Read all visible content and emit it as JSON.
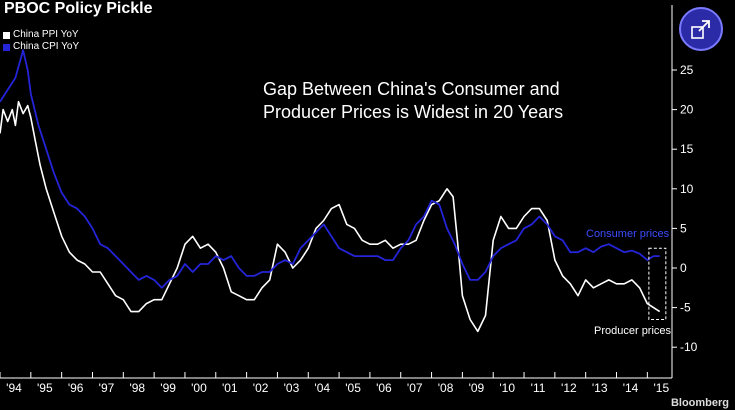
{
  "header": {
    "title": "PBOC Policy Pickle"
  },
  "annotation": {
    "line1": "Gap Between China's Consumer and",
    "line2": "Producer Prices is Widest in 20 Years"
  },
  "labels": {
    "consumer": "Consumer prices",
    "producer": "Producer prices"
  },
  "brand": "Bloomberg",
  "chart_data": {
    "type": "line",
    "title": "Gap Between China's Consumer and Producer Prices is Widest in 20 Years",
    "x_tick_labels": [
      "'94",
      "'95",
      "'96",
      "'97",
      "'98",
      "'99",
      "'00",
      "'01",
      "'02",
      "'03",
      "'04",
      "'05",
      "'06",
      "'07",
      "'08",
      "'09",
      "'10",
      "'11",
      "'12",
      "'13",
      "'14",
      "'15"
    ],
    "y_tick_values": [
      25,
      20,
      15,
      10,
      5,
      0,
      -5,
      -10
    ],
    "ylim": [
      -12,
      30
    ],
    "xlim": [
      1994.0,
      2015.8
    ],
    "grid": false,
    "legend_position": "top-left",
    "series": [
      {
        "name": "China PPI YoY",
        "color": "#ffffff",
        "x": [
          1994.0,
          1994.1,
          1994.25,
          1994.4,
          1994.5,
          1994.6,
          1994.75,
          1994.9,
          1995.0,
          1995.15,
          1995.3,
          1995.5,
          1995.75,
          1996.0,
          1996.25,
          1996.5,
          1996.75,
          1997.0,
          1997.25,
          1997.5,
          1997.75,
          1998.0,
          1998.25,
          1998.5,
          1998.75,
          1999.0,
          1999.25,
          1999.5,
          1999.75,
          2000.0,
          2000.25,
          2000.5,
          2000.75,
          2001.0,
          2001.25,
          2001.5,
          2001.75,
          2002.0,
          2002.25,
          2002.5,
          2002.75,
          2003.0,
          2003.25,
          2003.5,
          2003.75,
          2004.0,
          2004.25,
          2004.5,
          2004.75,
          2005.0,
          2005.25,
          2005.5,
          2005.75,
          2006.0,
          2006.25,
          2006.5,
          2006.75,
          2007.0,
          2007.25,
          2007.5,
          2007.75,
          2008.0,
          2008.25,
          2008.5,
          2008.7,
          2008.85,
          2009.0,
          2009.25,
          2009.5,
          2009.75,
          2010.0,
          2010.25,
          2010.5,
          2010.75,
          2011.0,
          2011.25,
          2011.5,
          2011.75,
          2012.0,
          2012.25,
          2012.5,
          2012.75,
          2013.0,
          2013.25,
          2013.5,
          2013.75,
          2014.0,
          2014.25,
          2014.5,
          2014.75,
          2015.0,
          2015.2,
          2015.4
        ],
        "values": [
          17.0,
          20.0,
          18.5,
          20.0,
          18.0,
          21.0,
          19.5,
          20.5,
          19.0,
          16.0,
          13.0,
          10.0,
          7.0,
          4.0,
          2.0,
          1.0,
          0.5,
          -0.5,
          -0.5,
          -2.0,
          -3.5,
          -4.0,
          -5.5,
          -5.5,
          -4.5,
          -4.0,
          -4.0,
          -2.0,
          0.0,
          3.0,
          4.0,
          2.5,
          3.0,
          2.0,
          0.0,
          -3.0,
          -3.5,
          -4.0,
          -4.0,
          -2.5,
          -1.5,
          3.0,
          2.0,
          0.0,
          1.0,
          2.5,
          5.0,
          6.0,
          7.5,
          8.0,
          5.5,
          5.0,
          3.5,
          3.0,
          3.0,
          3.5,
          2.5,
          3.0,
          3.0,
          3.5,
          6.0,
          8.0,
          8.5,
          10.0,
          9.0,
          3.0,
          -3.5,
          -6.5,
          -8.0,
          -6.0,
          3.5,
          6.5,
          5.0,
          5.0,
          6.5,
          7.5,
          7.5,
          6.0,
          1.0,
          -1.0,
          -2.0,
          -3.5,
          -1.5,
          -2.5,
          -2.0,
          -1.5,
          -2.0,
          -2.0,
          -1.5,
          -2.5,
          -4.5,
          -5.0,
          -5.5
        ]
      },
      {
        "name": "China CPI YoY",
        "color": "#2424d8",
        "x": [
          1994.0,
          1994.25,
          1994.5,
          1994.75,
          1994.9,
          1995.0,
          1995.25,
          1995.5,
          1995.75,
          1996.0,
          1996.25,
          1996.5,
          1996.75,
          1997.0,
          1997.25,
          1997.5,
          1997.75,
          1998.0,
          1998.25,
          1998.5,
          1998.75,
          1999.0,
          1999.25,
          1999.5,
          1999.75,
          2000.0,
          2000.25,
          2000.5,
          2000.75,
          2001.0,
          2001.25,
          2001.5,
          2001.75,
          2002.0,
          2002.25,
          2002.5,
          2002.75,
          2003.0,
          2003.25,
          2003.5,
          2003.75,
          2004.0,
          2004.25,
          2004.5,
          2004.75,
          2005.0,
          2005.25,
          2005.5,
          2005.75,
          2006.0,
          2006.25,
          2006.5,
          2006.75,
          2007.0,
          2007.25,
          2007.5,
          2007.75,
          2008.0,
          2008.25,
          2008.5,
          2008.75,
          2009.0,
          2009.25,
          2009.5,
          2009.75,
          2010.0,
          2010.25,
          2010.5,
          2010.75,
          2011.0,
          2011.25,
          2011.5,
          2011.75,
          2012.0,
          2012.25,
          2012.5,
          2012.75,
          2013.0,
          2013.25,
          2013.5,
          2013.75,
          2014.0,
          2014.25,
          2014.5,
          2014.75,
          2015.0,
          2015.2,
          2015.4
        ],
        "values": [
          21.0,
          22.5,
          24.0,
          27.5,
          25.0,
          22.0,
          18.0,
          15.0,
          12.0,
          9.5,
          8.0,
          7.5,
          6.5,
          5.0,
          3.0,
          2.5,
          1.5,
          0.5,
          -0.5,
          -1.5,
          -1.0,
          -1.5,
          -2.5,
          -1.5,
          -1.0,
          0.5,
          -0.5,
          0.5,
          0.5,
          1.5,
          1.0,
          1.5,
          0.0,
          -1.0,
          -1.0,
          -0.5,
          -0.5,
          0.5,
          1.0,
          0.5,
          2.5,
          3.5,
          4.5,
          5.5,
          4.0,
          2.5,
          2.0,
          1.5,
          1.5,
          1.5,
          1.5,
          1.0,
          1.0,
          2.5,
          3.5,
          5.5,
          6.5,
          8.5,
          8.0,
          5.0,
          3.0,
          0.5,
          -1.5,
          -1.5,
          -0.5,
          1.5,
          2.5,
          3.0,
          3.5,
          5.0,
          5.5,
          6.5,
          5.5,
          4.0,
          3.5,
          2.0,
          2.0,
          2.5,
          2.0,
          2.7,
          3.0,
          2.5,
          2.0,
          2.2,
          1.8,
          1.0,
          1.5,
          1.5
        ]
      }
    ]
  }
}
